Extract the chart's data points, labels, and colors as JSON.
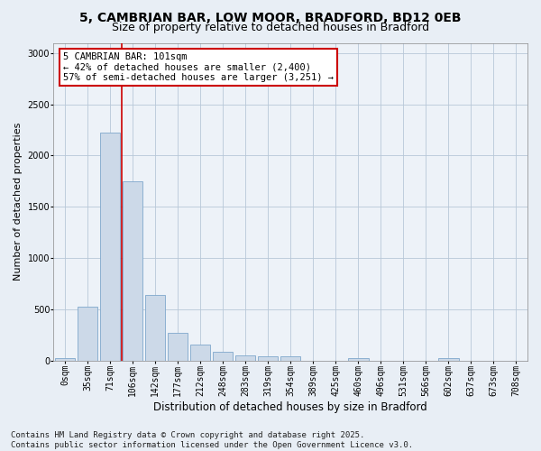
{
  "title_line1": "5, CAMBRIAN BAR, LOW MOOR, BRADFORD, BD12 0EB",
  "title_line2": "Size of property relative to detached houses in Bradford",
  "xlabel": "Distribution of detached houses by size in Bradford",
  "ylabel": "Number of detached properties",
  "categories": [
    "0sqm",
    "35sqm",
    "71sqm",
    "106sqm",
    "142sqm",
    "177sqm",
    "212sqm",
    "248sqm",
    "283sqm",
    "319sqm",
    "354sqm",
    "389sqm",
    "425sqm",
    "460sqm",
    "496sqm",
    "531sqm",
    "566sqm",
    "602sqm",
    "637sqm",
    "673sqm",
    "708sqm"
  ],
  "values": [
    20,
    520,
    2220,
    1750,
    635,
    270,
    155,
    85,
    50,
    40,
    40,
    0,
    0,
    25,
    0,
    0,
    0,
    20,
    0,
    0,
    0
  ],
  "bar_color": "#ccd9e8",
  "bar_edge_color": "#7fa8cc",
  "vline_color": "#cc0000",
  "vline_position": 2.5,
  "annotation_text": "5 CAMBRIAN BAR: 101sqm\n← 42% of detached houses are smaller (2,400)\n57% of semi-detached houses are larger (3,251) →",
  "annotation_box_color": "#ffffff",
  "annotation_box_edge_color": "#cc0000",
  "ylim": [
    0,
    3100
  ],
  "yticks": [
    0,
    500,
    1000,
    1500,
    2000,
    2500,
    3000
  ],
  "footer_line1": "Contains HM Land Registry data © Crown copyright and database right 2025.",
  "footer_line2": "Contains public sector information licensed under the Open Government Licence v3.0.",
  "bg_color": "#e8eef5",
  "plot_bg_color": "#edf2f8",
  "title_fontsize": 10,
  "subtitle_fontsize": 9,
  "tick_fontsize": 7,
  "xlabel_fontsize": 8.5,
  "ylabel_fontsize": 8,
  "footer_fontsize": 6.5,
  "annotation_fontsize": 7.5
}
